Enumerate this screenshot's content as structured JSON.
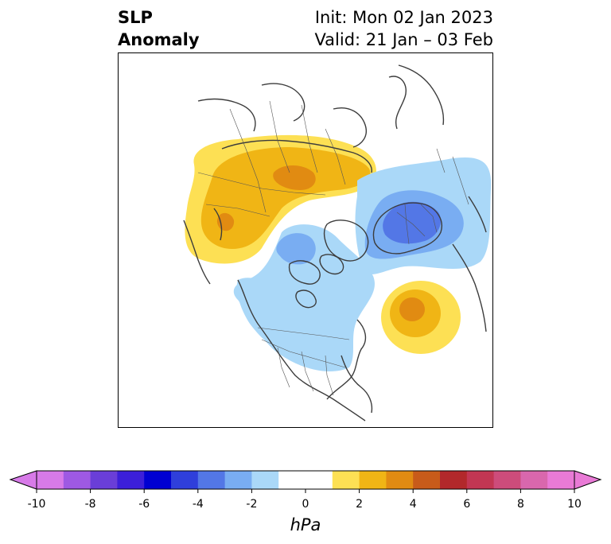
{
  "title": {
    "left_line1": "SLP",
    "left_line2": "Anomaly",
    "init": "Init: Mon 02 Jan 2023",
    "valid": "Valid: 21 Jan – 03 Feb"
  },
  "colorbar": {
    "unit": "hPa",
    "ticks": [
      "-10",
      "-8",
      "-6",
      "-4",
      "-2",
      "0",
      "2",
      "4",
      "6",
      "8",
      "10"
    ],
    "colors": [
      "#d77ae8",
      "#9e59e3",
      "#6a3ed8",
      "#3c1fd9",
      "#0000d2",
      "#2f3fdb",
      "#5377e6",
      "#79adf2",
      "#aad8f8",
      "#ffffff",
      "#ffffff",
      "#fde054",
      "#f0b515",
      "#e18b12",
      "#c85b1a",
      "#b2282b",
      "#c23653",
      "#cd4c7b",
      "#d967ad",
      "#e97ad6"
    ],
    "under_color": "#d77ae8",
    "over_color": "#e97ad6",
    "extend": "both"
  },
  "map": {
    "projection": "north-polar-stereographic",
    "field": "sea level pressure anomaly",
    "anomalies": [
      {
        "center": "Siberia / Central Asia",
        "sign": "positive",
        "max_hpa": 4
      },
      {
        "center": "Northern Europe",
        "sign": "negative",
        "min_hpa": -4
      },
      {
        "center": "North Pacific / Aleutians",
        "sign": "positive",
        "max_hpa": 4
      },
      {
        "center": "Canada / Arctic",
        "sign": "negative",
        "min_hpa": -2
      }
    ]
  }
}
